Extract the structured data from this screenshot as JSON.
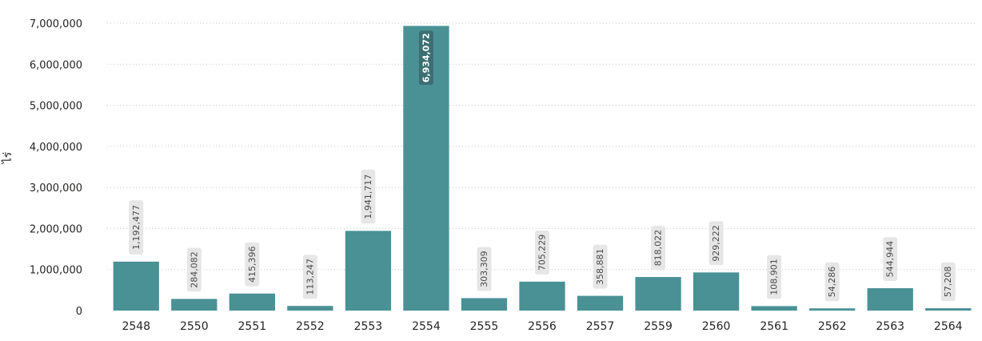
{
  "chart_data": {
    "type": "bar",
    "title": "",
    "xlabel": "",
    "ylabel": "ไร่",
    "categories": [
      "2548",
      "2550",
      "2551",
      "2552",
      "2553",
      "2554",
      "2555",
      "2556",
      "2557",
      "2559",
      "2560",
      "2561",
      "2562",
      "2563",
      "2564"
    ],
    "values": [
      1192477,
      284082,
      415396,
      113247,
      1941717,
      6934072,
      303309,
      705229,
      358881,
      818022,
      929222,
      108901,
      54286,
      544944,
      57208
    ],
    "value_labels": [
      "1,192,477",
      "284,082",
      "415,396",
      "113,247",
      "1,941,717",
      "6,934,072",
      "303,309",
      "705,229",
      "358,881",
      "818,022",
      "929,222",
      "108,901",
      "54,286",
      "544,944",
      "57,208"
    ],
    "ylim": [
      0,
      7000000
    ],
    "yticks": [
      0,
      1000000,
      2000000,
      3000000,
      4000000,
      5000000,
      6000000,
      7000000
    ],
    "ytick_labels": [
      "0",
      "1,000,000",
      "2,000,000",
      "3,000,000",
      "4,000,000",
      "5,000,000",
      "6,000,000",
      "7,000,000"
    ],
    "grid": true,
    "bar_color": "#4a9195"
  }
}
